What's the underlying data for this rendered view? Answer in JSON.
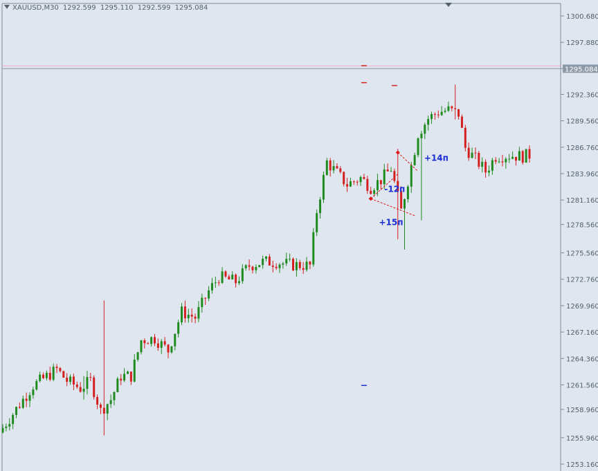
{
  "header": {
    "symbol": "XAUUSD,M30",
    "open": "1292.599",
    "high": "1295.110",
    "low": "1292.599",
    "close": "1295.084"
  },
  "colors": {
    "background": "#dfe6ef",
    "bull": "#1f8a1f",
    "bear": "#d42020",
    "axis_text": "#52606e",
    "axis_line": "#7d8a97",
    "price_line": "#f0a8c8",
    "annotation": "#1b2fd4",
    "trade_line": "#e01818"
  },
  "icons": {
    "dropdown": "triangle-down-icon",
    "shift_marker": "shift-triangle-icon"
  },
  "chart_data": {
    "type": "candlestick",
    "symbol": "XAUUSD",
    "timeframe": "M30",
    "ylim": [
      1252.5,
      1302.0
    ],
    "y_ticks": [
      "1300.680",
      "1297.880",
      "1295.084",
      "1292.360",
      "1289.560",
      "1286.760",
      "1283.960",
      "1281.160",
      "1278.560",
      "1275.560",
      "1272.760",
      "1269.960",
      "1267.160",
      "1264.360",
      "1261.560",
      "1258.960",
      "1255.960",
      "1253.160"
    ],
    "current_price": "1295.084",
    "bar_count": 157,
    "waypoints": [
      [
        0,
        1256.5
      ],
      [
        6,
        1259.5
      ],
      [
        10,
        1261.5
      ],
      [
        13,
        1262.2
      ],
      [
        17,
        1263.2
      ],
      [
        20,
        1262.0
      ],
      [
        24,
        1261.2
      ],
      [
        27,
        1262.0
      ],
      [
        30,
        1258.8
      ],
      [
        33,
        1260.0
      ],
      [
        36,
        1262.5
      ],
      [
        39,
        1262.5
      ],
      [
        42,
        1266.3
      ],
      [
        46,
        1266.5
      ],
      [
        50,
        1265.2
      ],
      [
        54,
        1269.3
      ],
      [
        58,
        1268.7
      ],
      [
        62,
        1271.5
      ],
      [
        65,
        1273.0
      ],
      [
        70,
        1272.5
      ],
      [
        74,
        1274.2
      ],
      [
        78,
        1274.6
      ],
      [
        82,
        1274.6
      ],
      [
        86,
        1274.3
      ],
      [
        92,
        1274.2
      ],
      [
        94,
        1280.0
      ],
      [
        97,
        1285.2
      ],
      [
        100,
        1284.0
      ],
      [
        103,
        1282.8
      ],
      [
        107,
        1283.5
      ],
      [
        110,
        1282.5
      ],
      [
        113,
        1283.3
      ],
      [
        116,
        1284.5
      ],
      [
        119,
        1280.0
      ],
      [
        122,
        1284.8
      ],
      [
        124,
        1288.2
      ],
      [
        127,
        1289.8
      ],
      [
        130,
        1290.5
      ],
      [
        133,
        1290.7
      ],
      [
        136,
        1290.3
      ],
      [
        138,
        1286.7
      ],
      [
        141,
        1285.5
      ],
      [
        144,
        1284.2
      ],
      [
        147,
        1285.8
      ],
      [
        151,
        1285.9
      ],
      [
        155,
        1285.8
      ],
      [
        158,
        1286.0
      ],
      [
        161,
        1288.0
      ],
      [
        165,
        1290.5
      ],
      [
        168,
        1294.0
      ],
      [
        170,
        1295.0
      ]
    ],
    "annotations": [
      {
        "label": "+14п",
        "price": 1285.6
      },
      {
        "label": "-12п",
        "price": 1282.3
      },
      {
        "label": "+15п",
        "price": 1278.8
      }
    ],
    "trade_markers": [
      {
        "from": [
          109,
          1281.3
        ],
        "to": [
          122,
          1279.5
        ]
      },
      {
        "from": [
          117,
          1286.2
        ],
        "to": [
          123,
          1284.2
        ]
      },
      {
        "from": [
          109,
          1281.3
        ],
        "to": [
          117,
          1283.9
        ]
      }
    ],
    "level_dashes": [
      {
        "bar": 107,
        "price": 1295.4,
        "color": "bear"
      },
      {
        "bar": 107,
        "price": 1293.6,
        "color": "bear"
      },
      {
        "bar": 116,
        "price": 1293.3,
        "color": "bear"
      },
      {
        "bar": 107,
        "price": 1261.5,
        "color": "annotation"
      }
    ]
  }
}
